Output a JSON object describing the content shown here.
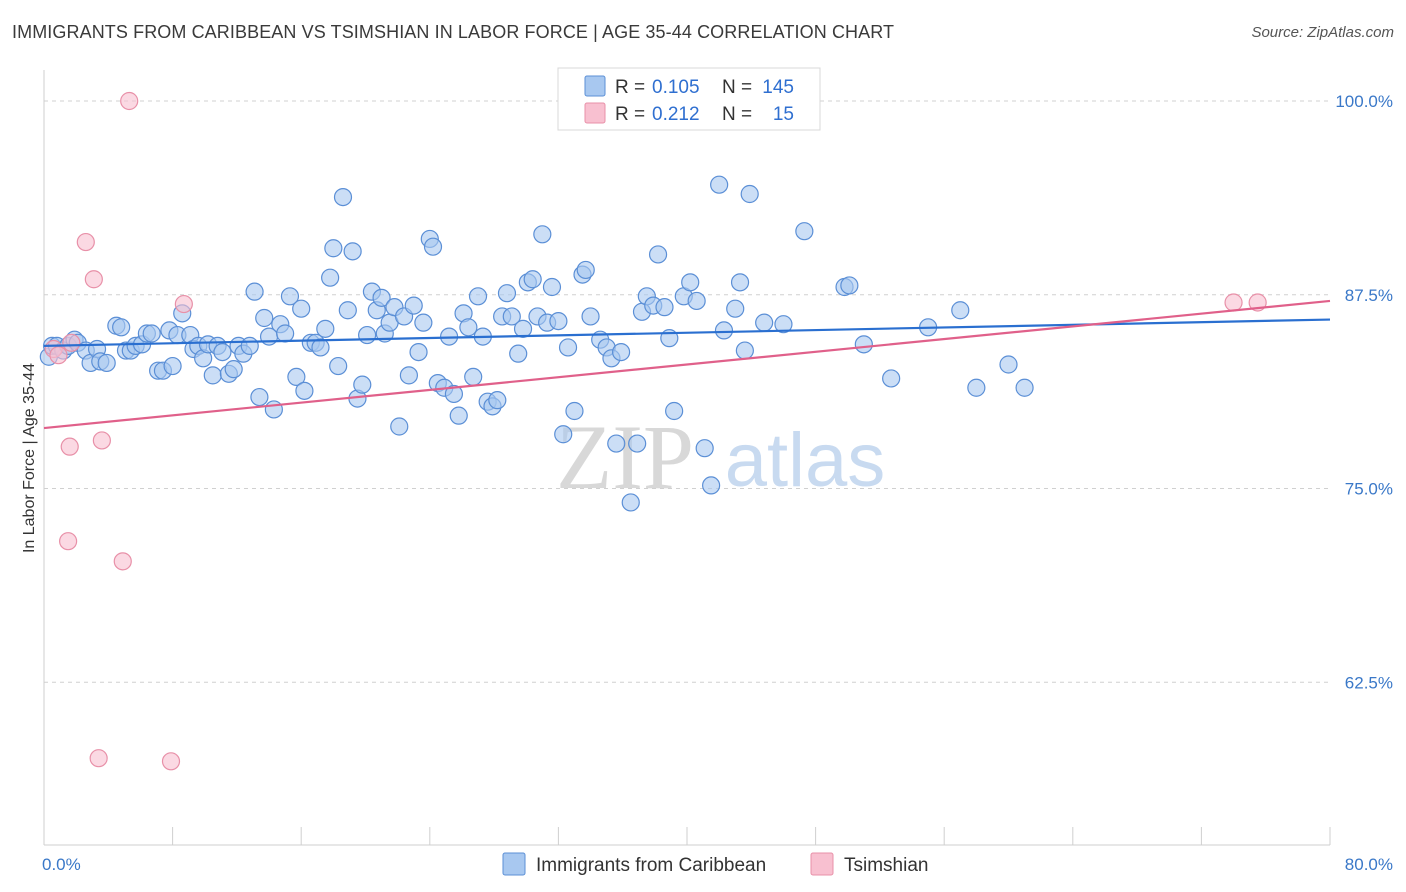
{
  "title": "IMMIGRANTS FROM CARIBBEAN VS TSIMSHIAN IN LABOR FORCE | AGE 35-44 CORRELATION CHART",
  "source": "Source: ZipAtlas.com",
  "watermark": {
    "zip": "ZIP",
    "atlas": "atlas"
  },
  "colors": {
    "blue_fill": "#a8c8f0",
    "blue_stroke": "#5b8fd6",
    "blue_line": "#2a6fd0",
    "pink_fill": "#f8c0d0",
    "pink_stroke": "#e890a8",
    "pink_line": "#e0608a",
    "tick_text": "#3a78c8",
    "grid": "#d0d0d0"
  },
  "legend": {
    "rows": [
      {
        "r_label": "R =",
        "r_value": "0.105",
        "n_label": "N =",
        "n_value": "145"
      },
      {
        "r_label": "R =",
        "r_value": "0.212",
        "n_label": "N =",
        "n_value": "15"
      }
    ]
  },
  "bottom_legend": [
    "Immigrants from Caribbean",
    "Tsimshian"
  ],
  "chart_data": {
    "type": "scatter",
    "xlabel": "",
    "ylabel": "In Labor Force | Age 35-44",
    "xlim": [
      0,
      80
    ],
    "ylim": [
      52,
      102
    ],
    "x_tick_labels": [
      {
        "value": 0,
        "label": "0.0%"
      },
      {
        "value": 80,
        "label": "80.0%"
      }
    ],
    "x_minor_ticks": [
      8,
      16,
      24,
      32,
      40,
      48,
      56,
      64,
      72,
      80
    ],
    "y_ticks": [
      {
        "value": 100,
        "label": "100.0%"
      },
      {
        "value": 87.5,
        "label": "87.5%"
      },
      {
        "value": 75,
        "label": "75.0%"
      },
      {
        "value": 62.5,
        "label": "62.5%"
      }
    ],
    "grid": "horizontal dashed",
    "series": [
      {
        "name": "Immigrants from Caribbean",
        "trend": [
          [
            0,
            84.2
          ],
          [
            80,
            85.9
          ]
        ],
        "points": [
          [
            0.3,
            83.5
          ],
          [
            0.5,
            84.2
          ],
          [
            0.8,
            84.2
          ],
          [
            1.2,
            83.9
          ],
          [
            1.5,
            84.2
          ],
          [
            1.9,
            84.6
          ],
          [
            2.1,
            84.4
          ],
          [
            2.6,
            83.9
          ],
          [
            2.9,
            83.1
          ],
          [
            3.3,
            84.0
          ],
          [
            3.5,
            83.2
          ],
          [
            3.9,
            83.1
          ],
          [
            4.5,
            85.5
          ],
          [
            4.8,
            85.4
          ],
          [
            5.1,
            83.9
          ],
          [
            5.4,
            83.9
          ],
          [
            5.7,
            84.2
          ],
          [
            6.1,
            84.3
          ],
          [
            6.4,
            85.0
          ],
          [
            6.7,
            85.0
          ],
          [
            7.1,
            82.6
          ],
          [
            7.4,
            82.6
          ],
          [
            7.8,
            85.2
          ],
          [
            8.0,
            82.9
          ],
          [
            8.3,
            84.9
          ],
          [
            8.6,
            86.3
          ],
          [
            9.1,
            84.9
          ],
          [
            9.3,
            84.0
          ],
          [
            9.6,
            84.2
          ],
          [
            9.9,
            83.4
          ],
          [
            10.2,
            84.3
          ],
          [
            10.5,
            82.3
          ],
          [
            10.8,
            84.2
          ],
          [
            11.1,
            83.8
          ],
          [
            11.5,
            82.4
          ],
          [
            11.8,
            82.7
          ],
          [
            12.1,
            84.2
          ],
          [
            12.4,
            83.7
          ],
          [
            12.8,
            84.2
          ],
          [
            13.1,
            87.7
          ],
          [
            13.4,
            80.9
          ],
          [
            13.7,
            86.0
          ],
          [
            14.0,
            84.8
          ],
          [
            14.3,
            80.1
          ],
          [
            14.7,
            85.6
          ],
          [
            15.0,
            85.0
          ],
          [
            15.3,
            87.4
          ],
          [
            15.7,
            82.2
          ],
          [
            16.0,
            86.6
          ],
          [
            16.2,
            81.3
          ],
          [
            16.6,
            84.4
          ],
          [
            16.9,
            84.4
          ],
          [
            17.2,
            84.1
          ],
          [
            17.5,
            85.3
          ],
          [
            17.8,
            88.6
          ],
          [
            18.0,
            90.5
          ],
          [
            18.3,
            82.9
          ],
          [
            18.6,
            93.8
          ],
          [
            18.9,
            86.5
          ],
          [
            19.2,
            90.3
          ],
          [
            19.5,
            80.8
          ],
          [
            19.8,
            81.7
          ],
          [
            20.1,
            84.9
          ],
          [
            20.4,
            87.7
          ],
          [
            20.7,
            86.5
          ],
          [
            21.0,
            87.3
          ],
          [
            21.2,
            85.0
          ],
          [
            21.5,
            85.7
          ],
          [
            21.8,
            86.7
          ],
          [
            22.1,
            79.0
          ],
          [
            22.4,
            86.1
          ],
          [
            22.7,
            82.3
          ],
          [
            23.0,
            86.8
          ],
          [
            23.3,
            83.8
          ],
          [
            23.6,
            85.7
          ],
          [
            24.0,
            91.1
          ],
          [
            24.2,
            90.6
          ],
          [
            24.5,
            81.8
          ],
          [
            24.9,
            81.5
          ],
          [
            25.2,
            84.8
          ],
          [
            25.5,
            81.1
          ],
          [
            25.8,
            79.7
          ],
          [
            26.1,
            86.3
          ],
          [
            26.4,
            85.4
          ],
          [
            26.7,
            82.2
          ],
          [
            27.0,
            87.4
          ],
          [
            27.3,
            84.8
          ],
          [
            27.6,
            80.6
          ],
          [
            27.9,
            80.3
          ],
          [
            28.2,
            80.7
          ],
          [
            28.5,
            86.1
          ],
          [
            28.8,
            87.6
          ],
          [
            29.1,
            86.1
          ],
          [
            29.5,
            83.7
          ],
          [
            29.8,
            85.3
          ],
          [
            30.1,
            88.3
          ],
          [
            30.4,
            88.5
          ],
          [
            30.7,
            86.1
          ],
          [
            31.0,
            91.4
          ],
          [
            31.3,
            85.7
          ],
          [
            31.6,
            88.0
          ],
          [
            32.0,
            85.8
          ],
          [
            32.3,
            78.5
          ],
          [
            32.6,
            84.1
          ],
          [
            33.0,
            80.0
          ],
          [
            33.5,
            88.8
          ],
          [
            33.7,
            89.1
          ],
          [
            34.0,
            86.1
          ],
          [
            34.6,
            84.6
          ],
          [
            35.0,
            84.1
          ],
          [
            35.3,
            83.4
          ],
          [
            35.6,
            77.9
          ],
          [
            35.9,
            83.8
          ],
          [
            36.5,
            74.1
          ],
          [
            36.9,
            77.9
          ],
          [
            37.2,
            86.4
          ],
          [
            37.5,
            87.4
          ],
          [
            37.9,
            86.8
          ],
          [
            38.2,
            90.1
          ],
          [
            38.6,
            86.7
          ],
          [
            38.9,
            84.7
          ],
          [
            39.2,
            80.0
          ],
          [
            39.8,
            87.4
          ],
          [
            40.2,
            88.3
          ],
          [
            40.6,
            87.1
          ],
          [
            41.1,
            77.6
          ],
          [
            41.5,
            75.2
          ],
          [
            42.0,
            94.6
          ],
          [
            42.3,
            85.2
          ],
          [
            43.0,
            86.6
          ],
          [
            43.3,
            88.3
          ],
          [
            43.6,
            83.9
          ],
          [
            43.9,
            94.0
          ],
          [
            44.8,
            85.7
          ],
          [
            46.0,
            85.6
          ],
          [
            47.3,
            91.6
          ],
          [
            49.8,
            88.0
          ],
          [
            50.1,
            88.1
          ],
          [
            51.0,
            84.3
          ],
          [
            52.7,
            82.1
          ],
          [
            55.0,
            85.4
          ],
          [
            57.0,
            86.5
          ],
          [
            58.0,
            81.5
          ],
          [
            60.0,
            83.0
          ],
          [
            61.0,
            81.5
          ]
        ]
      },
      {
        "name": "Tsimshian",
        "trend": [
          [
            0,
            78.9
          ],
          [
            80,
            87.1
          ]
        ],
        "points": [
          [
            0.6,
            84.0
          ],
          [
            0.9,
            83.6
          ],
          [
            1.7,
            84.4
          ],
          [
            2.6,
            90.9
          ],
          [
            3.1,
            88.5
          ],
          [
            1.6,
            77.7
          ],
          [
            3.6,
            78.1
          ],
          [
            1.5,
            71.6
          ],
          [
            4.9,
            70.3
          ],
          [
            5.3,
            100.0
          ],
          [
            8.7,
            86.9
          ],
          [
            3.4,
            57.6
          ],
          [
            7.9,
            57.4
          ],
          [
            74.0,
            87.0
          ],
          [
            75.5,
            87.0
          ]
        ]
      }
    ]
  }
}
